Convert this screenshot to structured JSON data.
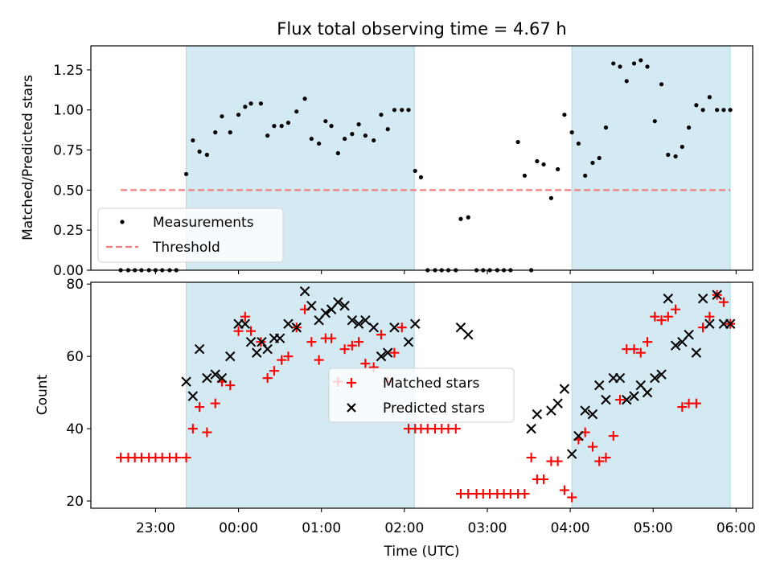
{
  "chart_data": {
    "type": "scatter",
    "title": "Flux total observing time = 4.67 h",
    "xlabel": "Time (UTC)",
    "x_ticks": [
      "23:00",
      "00:00",
      "01:00",
      "02:00",
      "03:00",
      "04:00",
      "05:00",
      "06:00"
    ],
    "x_range_hours": [
      -1.78,
      6.2
    ],
    "shaded_intervals_hours": [
      [
        -0.63,
        2.12
      ],
      [
        4.02,
        5.93
      ]
    ],
    "shade_color": "#add8e6",
    "panels": [
      {
        "ylabel": "Matched/Predicted stars",
        "ylim": [
          0,
          1.4
        ],
        "y_ticks": [
          "0.00",
          "0.25",
          "0.50",
          "0.75",
          "1.00",
          "1.25"
        ],
        "series": [
          {
            "name": "Measurements",
            "marker": "dot",
            "color": "#000000",
            "x": [
              -1.42,
              -1.33,
              -1.25,
              -1.17,
              -1.08,
              -1.0,
              -0.92,
              -0.83,
              -0.75,
              -0.63,
              -0.55,
              -0.47,
              -0.38,
              -0.28,
              -0.2,
              -0.1,
              0.0,
              0.08,
              0.15,
              0.27,
              0.35,
              0.43,
              0.52,
              0.6,
              0.7,
              0.8,
              0.88,
              0.97,
              1.05,
              1.12,
              1.2,
              1.28,
              1.37,
              1.45,
              1.53,
              1.63,
              1.72,
              1.8,
              1.88,
              1.97,
              2.05,
              2.13,
              2.2,
              2.28,
              2.37,
              2.45,
              2.53,
              2.62,
              2.68,
              2.77,
              2.87,
              2.95,
              3.03,
              3.12,
              3.2,
              3.28,
              3.37,
              3.45,
              3.53,
              3.6,
              3.68,
              3.77,
              3.85,
              3.93,
              4.02,
              4.1,
              4.18,
              4.27,
              4.35,
              4.43,
              4.52,
              4.6,
              4.68,
              4.77,
              4.85,
              4.93,
              5.02,
              5.1,
              5.18,
              5.27,
              5.35,
              5.43,
              5.52,
              5.6,
              5.68,
              5.77,
              5.85,
              5.93
            ],
            "y": [
              0,
              0,
              0,
              0,
              0,
              0,
              0,
              0,
              0,
              0.6,
              0.81,
              0.74,
              0.72,
              0.86,
              0.96,
              0.86,
              0.97,
              1.02,
              1.04,
              1.04,
              0.84,
              0.9,
              0.9,
              0.92,
              0.99,
              1.07,
              0.82,
              0.79,
              0.93,
              0.9,
              0.73,
              0.82,
              0.85,
              0.91,
              0.84,
              0.81,
              0.97,
              0.88,
              1.0,
              1.0,
              1.0,
              0.62,
              0.58,
              0,
              0,
              0,
              0,
              0,
              0.32,
              0.33,
              0,
              0,
              0,
              0,
              0,
              0,
              0.8,
              0.59,
              0,
              0.68,
              0.66,
              0.45,
              0.63,
              0.97,
              0.86,
              0.79,
              0.59,
              0.67,
              0.7,
              0.89,
              1.29,
              1.27,
              1.18,
              1.29,
              1.31,
              1.27,
              0.93,
              1.16,
              0.72,
              0.71,
              0.77,
              0.89,
              1.03,
              1.0,
              1.08,
              1.0,
              1.0,
              1.0
            ]
          },
          {
            "name": "Threshold",
            "marker": "dashed-line",
            "color": "#f08080",
            "x": [
              -1.42,
              5.93
            ],
            "y": [
              0.5,
              0.5
            ]
          }
        ]
      },
      {
        "ylabel": "Count",
        "ylim": [
          18,
          80.5
        ],
        "y_ticks": [
          "20",
          "40",
          "60",
          "80"
        ],
        "series": [
          {
            "name": "Matched stars",
            "marker": "plus",
            "color": "#ff0000",
            "x": [
              -1.42,
              -1.33,
              -1.25,
              -1.17,
              -1.08,
              -1.0,
              -0.92,
              -0.83,
              -0.75,
              -0.63,
              -0.55,
              -0.47,
              -0.38,
              -0.28,
              -0.2,
              -0.1,
              0.0,
              0.08,
              0.15,
              0.27,
              0.35,
              0.43,
              0.52,
              0.6,
              0.7,
              0.8,
              0.88,
              0.97,
              1.05,
              1.12,
              1.2,
              1.28,
              1.37,
              1.45,
              1.53,
              1.63,
              1.72,
              1.8,
              1.88,
              1.97,
              2.05,
              2.13,
              2.2,
              2.28,
              2.37,
              2.45,
              2.53,
              2.62,
              2.68,
              2.77,
              2.87,
              2.95,
              3.03,
              3.12,
              3.2,
              3.28,
              3.37,
              3.45,
              3.53,
              3.6,
              3.68,
              3.77,
              3.85,
              3.93,
              4.02,
              4.1,
              4.18,
              4.27,
              4.35,
              4.43,
              4.52,
              4.6,
              4.68,
              4.77,
              4.85,
              4.93,
              5.02,
              5.1,
              5.18,
              5.27,
              5.35,
              5.43,
              5.52,
              5.6,
              5.68,
              5.77,
              5.85,
              5.93
            ],
            "y": [
              32,
              32,
              32,
              32,
              32,
              32,
              32,
              32,
              32,
              32,
              40,
              46,
              39,
              47,
              53,
              52,
              67,
              71,
              67,
              64,
              54,
              56,
              59,
              60,
              68,
              73,
              64,
              59,
              65,
              65,
              53,
              62,
              63,
              64,
              58,
              57,
              66,
              53,
              61,
              68,
              40,
              40,
              40,
              40,
              40,
              40,
              40,
              40,
              22,
              22,
              22,
              22,
              22,
              22,
              22,
              22,
              22,
              22,
              32,
              26,
              26,
              31,
              31,
              23,
              21,
              37,
              39,
              35,
              31,
              32,
              38,
              48,
              62,
              62,
              61,
              64,
              71,
              70,
              71,
              73,
              46,
              47,
              47,
              68,
              71,
              77,
              75,
              69
            ]
          },
          {
            "name": "Predicted stars",
            "marker": "x",
            "color": "#000000",
            "x": [
              -0.63,
              -0.55,
              -0.47,
              -0.38,
              -0.28,
              -0.2,
              -0.1,
              0.0,
              0.08,
              0.15,
              0.22,
              0.28,
              0.35,
              0.43,
              0.5,
              0.6,
              0.7,
              0.8,
              0.88,
              0.97,
              1.05,
              1.12,
              1.2,
              1.28,
              1.37,
              1.45,
              1.53,
              1.63,
              1.72,
              1.8,
              1.88,
              2.05,
              2.13,
              2.68,
              2.77,
              3.53,
              3.6,
              3.77,
              3.85,
              3.93,
              4.02,
              4.1,
              4.18,
              4.27,
              4.35,
              4.43,
              4.52,
              4.6,
              4.68,
              4.77,
              4.85,
              4.93,
              5.02,
              5.1,
              5.18,
              5.27,
              5.35,
              5.43,
              5.52,
              5.6,
              5.68,
              5.77,
              5.85,
              5.93
            ],
            "y": [
              53,
              49,
              62,
              54,
              55,
              54,
              60,
              69,
              69,
              64,
              61,
              64,
              62,
              65,
              65,
              69,
              68,
              78,
              74,
              70,
              72,
              73,
              75,
              74,
              70,
              69,
              70,
              68,
              60,
              61,
              68,
              64,
              69,
              68,
              66,
              40,
              44,
              45,
              47,
              51,
              33,
              38,
              45,
              44,
              52,
              48,
              54,
              54,
              48,
              49,
              52,
              50,
              54,
              55,
              76,
              63,
              64,
              66,
              61,
              76,
              69,
              77,
              69,
              69
            ]
          }
        ]
      }
    ]
  },
  "legends": {
    "top": [
      "Measurements",
      "Threshold"
    ],
    "bottom": [
      "Matched stars",
      "Predicted stars"
    ]
  }
}
